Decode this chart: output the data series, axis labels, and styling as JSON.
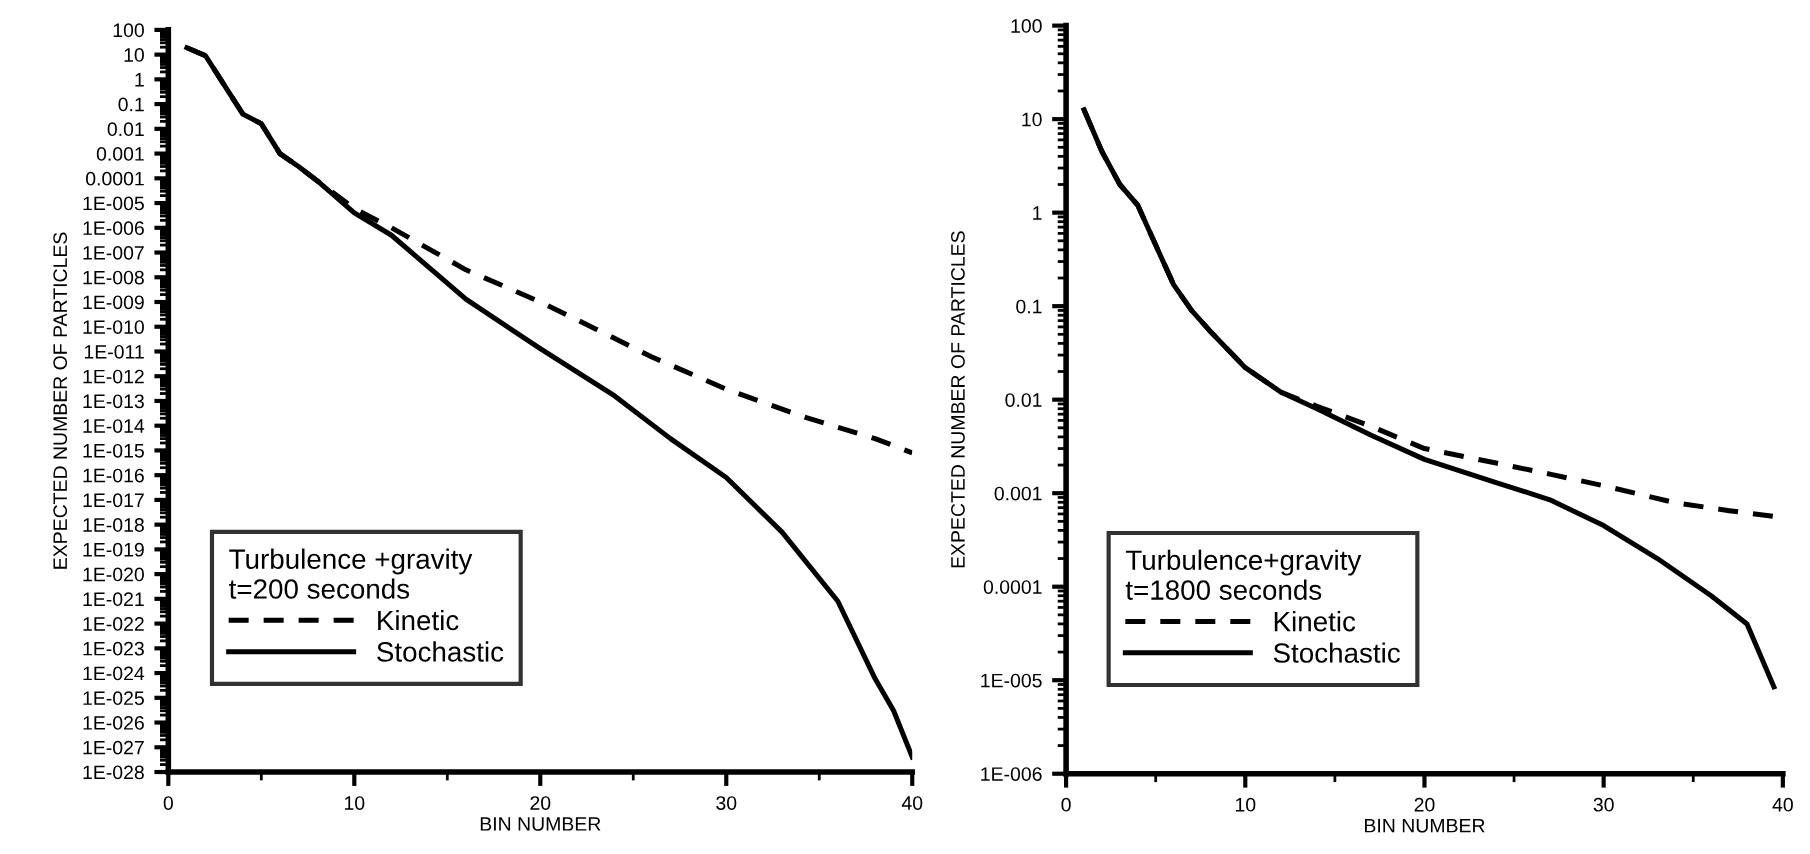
{
  "chart_data": [
    {
      "type": "line",
      "xlabel": "BIN NUMBER",
      "ylabel": "EXPECTED NUMBER OF PARTICLES",
      "legend_title": "Turbulence +gravity\nt=200 seconds",
      "legend": "bottom left",
      "log": "y",
      "grid": false,
      "marker": "none",
      "xlim": [
        0,
        40
      ],
      "xticks": [
        0,
        10,
        20,
        30,
        40
      ],
      "ylim": [
        1e-28,
        100
      ],
      "yticks": [
        100,
        10,
        1,
        0.1,
        0.01,
        0.001,
        0.0001,
        {
          "value": 1e-05,
          "label": "1E-005"
        },
        {
          "value": 1e-06,
          "label": "1E-006"
        },
        {
          "value": 1e-07,
          "label": "1E-007"
        },
        {
          "value": 1e-08,
          "label": "1E-008"
        },
        {
          "value": 1e-09,
          "label": "1E-009"
        },
        {
          "value": 1e-10,
          "label": "1E-010"
        },
        {
          "value": 1e-11,
          "label": "1E-011"
        },
        {
          "value": 1e-12,
          "label": "1E-012"
        },
        {
          "value": 1e-13,
          "label": "1E-013"
        },
        {
          "value": 1e-14,
          "label": "1E-014"
        },
        {
          "value": 1e-15,
          "label": "1E-015"
        },
        {
          "value": 1e-16,
          "label": "1E-016"
        },
        {
          "value": 1e-17,
          "label": "1E-017"
        },
        {
          "value": 1e-18,
          "label": "1E-018"
        },
        {
          "value": 1e-19,
          "label": "1E-019"
        },
        {
          "value": 1e-20,
          "label": "1E-020"
        },
        {
          "value": 1e-21,
          "label": "1E-021"
        },
        {
          "value": 1e-22,
          "label": "1E-022"
        },
        {
          "value": 1e-23,
          "label": "1E-023"
        },
        {
          "value": 1e-24,
          "label": "1E-024"
        },
        {
          "value": 1e-25,
          "label": "1E-025"
        },
        {
          "value": 1e-26,
          "label": "1E-026"
        },
        {
          "value": 1e-27,
          "label": "1E-027"
        },
        {
          "value": 1e-28,
          "label": "1E-028"
        }
      ],
      "series": [
        {
          "name": "Kinetic",
          "color": "#000000",
          "line_style": "dashed",
          "x": [
            1,
            2,
            3,
            4,
            5,
            6,
            7,
            8,
            10,
            12,
            16,
            20,
            23,
            26,
            30,
            34,
            38,
            40
          ],
          "values": [
            19,
            9,
            0.6,
            0.04,
            0.016,
            0.001,
            0.0003,
            8e-05,
            6e-06,
            1e-06,
            2e-08,
            1e-09,
            8e-11,
            6e-12,
            3e-13,
            2.5e-14,
            3e-15,
            8e-16
          ]
        },
        {
          "name": "Stochastic",
          "color": "#000000",
          "line_style": "solid",
          "x": [
            1,
            2,
            3,
            4,
            5,
            6,
            7,
            8,
            10,
            12,
            16,
            20,
            24,
            27,
            30,
            33,
            36,
            38,
            39,
            40
          ],
          "values": [
            19,
            9,
            0.6,
            0.04,
            0.016,
            0.001,
            0.0003,
            8e-05,
            4e-06,
            5e-07,
            1.3e-09,
            1.3e-11,
            1.6e-13,
            3e-15,
            8e-17,
            5e-19,
            8e-22,
            6e-25,
            3e-26,
            4e-28
          ]
        }
      ]
    },
    {
      "type": "line",
      "xlabel": "BIN NUMBER",
      "ylabel": "EXPECTED NUMBER OF PARTICLES",
      "legend_title": "Turbulence+gravity\nt=1800 seconds",
      "legend": "bottom left",
      "log": "y",
      "grid": false,
      "marker": "none",
      "xlim": [
        0,
        40
      ],
      "xticks": [
        0,
        10,
        20,
        30,
        40
      ],
      "ylim": [
        1e-06,
        100
      ],
      "yticks": [
        100,
        10,
        1,
        0.1,
        0.01,
        0.001,
        0.0001,
        {
          "value": 1e-05,
          "label": "1E-005"
        },
        {
          "value": 1e-06,
          "label": "1E-006"
        }
      ],
      "series": [
        {
          "name": "Kinetic",
          "color": "#000000",
          "line_style": "dashed",
          "x": [
            1,
            2,
            3,
            4,
            5,
            6,
            7,
            8,
            10,
            12,
            14,
            17,
            20,
            24,
            27,
            30,
            34,
            37,
            40
          ],
          "values": [
            12.6,
            4.5,
            2.0,
            1.2,
            0.45,
            0.17,
            0.09,
            0.055,
            0.022,
            0.012,
            0.0085,
            0.0052,
            0.003,
            0.0021,
            0.0016,
            0.0012,
            0.00079,
            0.00065,
            0.00055
          ]
        },
        {
          "name": "Stochastic",
          "color": "#000000",
          "line_style": "solid",
          "x": [
            1,
            2,
            3,
            4,
            5,
            6,
            7,
            8,
            10,
            12,
            14,
            17,
            20,
            24,
            27,
            30,
            33,
            36,
            38,
            39.5
          ],
          "values": [
            12.6,
            4.5,
            2.0,
            1.2,
            0.45,
            0.17,
            0.09,
            0.055,
            0.022,
            0.012,
            0.008,
            0.0042,
            0.0023,
            0.0013,
            0.00085,
            0.00045,
            0.0002,
            8e-05,
            4e-05,
            8.5e-06
          ]
        }
      ]
    }
  ]
}
